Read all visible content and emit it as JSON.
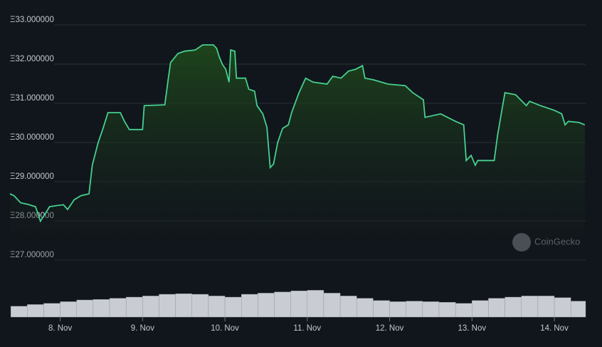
{
  "chart_data": [
    {
      "type": "line",
      "color": "#46d08f",
      "x": [
        7.39,
        7.44,
        7.52,
        7.61,
        7.7,
        7.76,
        7.83,
        7.87,
        7.96,
        8.04,
        8.09,
        8.17,
        8.25,
        8.35,
        8.39,
        8.46,
        8.52,
        8.58,
        8.73,
        8.78,
        8.84,
        9.0,
        9.02,
        9.27,
        9.31,
        9.34,
        9.43,
        9.51,
        9.64,
        9.73,
        9.86,
        9.9,
        9.93,
        9.97,
        10.01,
        10.05,
        10.07,
        10.12,
        10.14,
        10.25,
        10.29,
        10.36,
        10.39,
        10.46,
        10.51,
        10.55,
        10.59,
        10.64,
        10.7,
        10.77,
        10.81,
        10.9,
        10.98,
        11.07,
        11.24,
        11.31,
        11.41,
        11.5,
        11.59,
        11.67,
        11.7,
        11.8,
        11.98,
        12.19,
        12.28,
        12.41,
        12.43,
        12.62,
        12.8,
        12.9,
        12.93,
        12.99,
        13.04,
        13.07,
        13.27,
        13.31,
        13.37,
        13.4,
        13.53,
        13.66,
        13.7,
        13.83,
        14.0,
        14.09,
        14.13,
        14.17,
        14.3,
        14.37
      ],
      "values": [
        28.6,
        28.55,
        28.37,
        28.33,
        28.27,
        27.9,
        28.13,
        28.27,
        28.3,
        28.32,
        28.2,
        28.45,
        28.55,
        28.6,
        29.33,
        29.9,
        30.27,
        30.67,
        30.67,
        30.45,
        30.24,
        30.24,
        30.85,
        30.87,
        31.5,
        31.95,
        32.18,
        32.24,
        32.27,
        32.4,
        32.4,
        32.31,
        32.1,
        31.9,
        31.78,
        31.45,
        32.27,
        32.24,
        31.55,
        31.55,
        31.27,
        31.22,
        30.85,
        30.64,
        30.3,
        29.27,
        29.36,
        29.9,
        30.27,
        30.36,
        30.67,
        31.18,
        31.55,
        31.45,
        31.4,
        31.6,
        31.55,
        31.73,
        31.78,
        31.87,
        31.55,
        31.51,
        31.4,
        31.36,
        31.18,
        31.0,
        30.55,
        30.64,
        30.45,
        30.36,
        29.45,
        29.58,
        29.33,
        29.45,
        29.45,
        30.09,
        30.82,
        31.18,
        31.13,
        30.85,
        30.96,
        30.85,
        30.73,
        30.64,
        30.36,
        30.45,
        30.42,
        30.36
      ],
      "xlim": [
        7.39,
        14.38
      ],
      "xticks": [
        {
          "value": 8,
          "label": "8. Nov"
        },
        {
          "value": 9,
          "label": "9. Nov"
        },
        {
          "value": 10,
          "label": "10. Nov"
        },
        {
          "value": 11,
          "label": "11. Nov"
        },
        {
          "value": 12,
          "label": "12. Nov"
        },
        {
          "value": 13,
          "label": "13. Nov"
        },
        {
          "value": 14,
          "label": "14. Nov"
        }
      ],
      "ylim": [
        25.5,
        33
      ],
      "yticks": [
        {
          "value": 27,
          "label": "Ξ27.000000"
        },
        {
          "value": 28,
          "label": "Ξ28.000000"
        },
        {
          "value": 29,
          "label": "Ξ29.000000"
        },
        {
          "value": 30,
          "label": "Ξ30.000000"
        },
        {
          "value": 31,
          "label": "Ξ31.000000"
        },
        {
          "value": 32,
          "label": "Ξ32.000000"
        },
        {
          "value": 33,
          "label": "Ξ33.000000"
        }
      ],
      "grid": true
    },
    {
      "type": "bar",
      "color": "#c9cdd3",
      "x": [
        7.4,
        7.6,
        7.8,
        8.0,
        8.2,
        8.4,
        8.6,
        8.8,
        9.0,
        9.2,
        9.4,
        9.6,
        9.8,
        10.0,
        10.2,
        10.4,
        10.6,
        10.8,
        11.0,
        11.2,
        11.4,
        11.6,
        11.8,
        12.0,
        12.2,
        12.4,
        12.6,
        12.8,
        13.0,
        13.2,
        13.4,
        13.6,
        13.8,
        14.0,
        14.2
      ],
      "values": [
        19,
        22,
        24,
        27,
        30,
        31,
        33,
        35,
        37,
        40,
        41,
        40,
        37,
        35,
        40,
        42,
        44,
        46,
        47,
        42,
        37,
        33,
        29,
        27,
        28,
        27,
        26,
        24,
        29,
        33,
        35,
        37,
        37,
        34,
        28
      ],
      "xlim": [
        7.39,
        14.38
      ],
      "ylim": [
        0,
        100
      ]
    }
  ],
  "watermark": "CoinGecko"
}
